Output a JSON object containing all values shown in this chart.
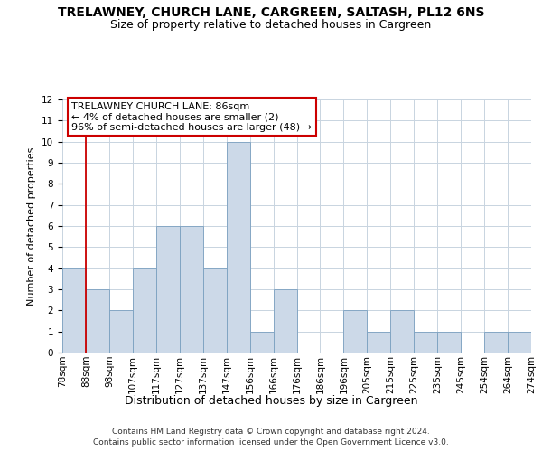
{
  "title1": "TRELAWNEY, CHURCH LANE, CARGREEN, SALTASH, PL12 6NS",
  "title2": "Size of property relative to detached houses in Cargreen",
  "xlabel": "Distribution of detached houses by size in Cargreen",
  "ylabel": "Number of detached properties",
  "bin_labels": [
    "78sqm",
    "88sqm",
    "98sqm",
    "107sqm",
    "117sqm",
    "127sqm",
    "137sqm",
    "147sqm",
    "156sqm",
    "166sqm",
    "176sqm",
    "186sqm",
    "196sqm",
    "205sqm",
    "215sqm",
    "225sqm",
    "235sqm",
    "245sqm",
    "254sqm",
    "264sqm",
    "274sqm"
  ],
  "bar_values": [
    4,
    3,
    2,
    4,
    6,
    6,
    4,
    10,
    1,
    3,
    0,
    0,
    2,
    1,
    2,
    1,
    1,
    0,
    1,
    1
  ],
  "bar_color": "#ccd9e8",
  "bar_edge_color": "#7aa0c0",
  "vline_x_index": 1,
  "vline_color": "#cc0000",
  "annotation_line1": "TRELAWNEY CHURCH LANE: 86sqm",
  "annotation_line2": "← 4% of detached houses are smaller (2)",
  "annotation_line3": "96% of semi-detached houses are larger (48) →",
  "annotation_box_edge_color": "#cc0000",
  "ylim_max": 12,
  "yticks": [
    0,
    1,
    2,
    3,
    4,
    5,
    6,
    7,
    8,
    9,
    10,
    11,
    12
  ],
  "footer1": "Contains HM Land Registry data © Crown copyright and database right 2024.",
  "footer2": "Contains public sector information licensed under the Open Government Licence v3.0.",
  "bg_color": "#ffffff",
  "plot_bg_color": "#ffffff",
  "grid_color": "#c8d4e0",
  "title1_fontsize": 10,
  "title2_fontsize": 9,
  "ylabel_fontsize": 8,
  "xlabel_fontsize": 9,
  "tick_fontsize": 7.5,
  "annotation_fontsize": 8,
  "footer_fontsize": 6.5
}
